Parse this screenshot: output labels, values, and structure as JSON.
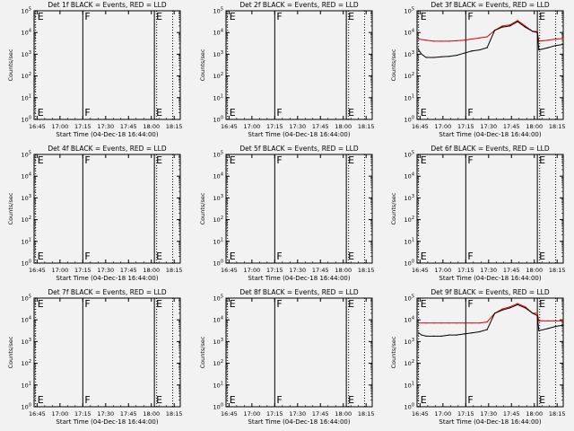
{
  "figure": {
    "background": "#f2f2f2",
    "axis_color": "#000000",
    "events_color": "#000000",
    "lld_color": "#e00000"
  },
  "chart_data": [
    {
      "id": "det1",
      "type": "line",
      "title": "Det 1f BLACK = Events, RED = LLD",
      "ylabel": "Counts/sec",
      "xlabel": "Start Time (04-Dec-18 16:44:00)",
      "xticks": [
        "16:45",
        "17:00",
        "17:15",
        "17:30",
        "17:45",
        "18:00",
        "18:15"
      ],
      "yticks": [
        "10^0",
        "10^1",
        "10^2",
        "10^3",
        "10^4",
        "10^5"
      ],
      "xlim_min": [
        -1,
        95
      ],
      "ylim_log10": [
        0,
        5
      ],
      "scale": "log",
      "markers": [
        {
          "label": "E",
          "t": 0,
          "style": "dotted"
        },
        {
          "label": "F",
          "t": 31,
          "style": "solid"
        },
        {
          "label": "E",
          "t": 78,
          "style": "solid"
        },
        {
          "label": "",
          "t": 79.5,
          "style": "dotted"
        },
        {
          "label": "",
          "t": 90,
          "style": "dotted"
        }
      ],
      "series": []
    },
    {
      "id": "det2",
      "type": "line",
      "title": "Det 2f BLACK = Events, RED = LLD",
      "ylabel": "Counts/sec",
      "xlabel": "Start Time (04-Dec-18 16:44:00)",
      "xticks": [
        "16:45",
        "17:00",
        "17:15",
        "17:30",
        "17:45",
        "18:00",
        "18:15"
      ],
      "yticks": [
        "10^0",
        "10^1",
        "10^2",
        "10^3",
        "10^4",
        "10^5"
      ],
      "xlim_min": [
        -1,
        95
      ],
      "ylim_log10": [
        0,
        5
      ],
      "scale": "log",
      "markers": [
        {
          "label": "E",
          "t": 0,
          "style": "dotted"
        },
        {
          "label": "F",
          "t": 31,
          "style": "solid"
        },
        {
          "label": "E",
          "t": 78,
          "style": "solid"
        },
        {
          "label": "",
          "t": 79.5,
          "style": "dotted"
        },
        {
          "label": "",
          "t": 90,
          "style": "dotted"
        }
      ],
      "series": []
    },
    {
      "id": "det3",
      "type": "line",
      "title": "Det 3f BLACK = Events, RED = LLD",
      "ylabel": "Counts/sec",
      "xlabel": "Start Time (04-Dec-18 16:44:00)",
      "xticks": [
        "16:45",
        "17:00",
        "17:15",
        "17:30",
        "17:45",
        "18:00",
        "18:15"
      ],
      "yticks": [
        "10^0",
        "10^1",
        "10^2",
        "10^3",
        "10^4",
        "10^5"
      ],
      "xlim_min": [
        -1,
        95
      ],
      "ylim_log10": [
        0,
        5
      ],
      "scale": "log",
      "markers": [
        {
          "label": "E",
          "t": 0,
          "style": "dotted"
        },
        {
          "label": "F",
          "t": 31,
          "style": "solid"
        },
        {
          "label": "E",
          "t": 78,
          "style": "solid"
        },
        {
          "label": "",
          "t": 79.5,
          "style": "dotted"
        },
        {
          "label": "",
          "t": 90,
          "style": "dotted"
        }
      ],
      "series": [
        {
          "color": "red",
          "x": [
            0,
            5,
            10,
            15,
            20,
            25,
            30,
            35,
            40,
            45,
            50,
            55,
            60,
            65,
            70,
            75,
            78,
            79,
            85,
            90,
            95
          ],
          "y": [
            3.7,
            3.65,
            3.6,
            3.6,
            3.6,
            3.62,
            3.65,
            3.7,
            3.75,
            3.8,
            4.1,
            4.3,
            4.35,
            4.55,
            4.3,
            4.05,
            4.05,
            3.6,
            3.65,
            3.7,
            3.72
          ]
        },
        {
          "color": "black",
          "x": [
            0,
            2,
            5,
            10,
            15,
            20,
            25,
            30,
            35,
            40,
            45,
            50,
            55,
            60,
            65,
            70,
            75,
            78,
            79,
            85,
            90,
            95
          ],
          "y": [
            3.2,
            3.0,
            2.85,
            2.85,
            2.88,
            2.9,
            2.95,
            3.05,
            3.15,
            3.2,
            3.3,
            4.1,
            4.25,
            4.3,
            4.5,
            4.25,
            4.05,
            4.0,
            3.2,
            3.3,
            3.4,
            3.45
          ]
        }
      ]
    },
    {
      "id": "det4",
      "type": "line",
      "title": "Det 4f BLACK = Events, RED = LLD",
      "ylabel": "Counts/sec",
      "xlabel": "Start Time (04-Dec-18 16:44:00)",
      "xticks": [
        "16:45",
        "17:00",
        "17:15",
        "17:30",
        "17:45",
        "18:00",
        "18:15"
      ],
      "yticks": [
        "10^0",
        "10^1",
        "10^2",
        "10^3",
        "10^4",
        "10^5"
      ],
      "xlim_min": [
        -1,
        95
      ],
      "ylim_log10": [
        0,
        5
      ],
      "scale": "log",
      "markers": [
        {
          "label": "E",
          "t": 0,
          "style": "dotted"
        },
        {
          "label": "F",
          "t": 31,
          "style": "solid"
        },
        {
          "label": "E",
          "t": 78,
          "style": "solid"
        },
        {
          "label": "",
          "t": 79.5,
          "style": "dotted"
        },
        {
          "label": "",
          "t": 90,
          "style": "dotted"
        }
      ],
      "series": []
    },
    {
      "id": "det5",
      "type": "line",
      "title": "Det 5f BLACK = Events, RED = LLD",
      "ylabel": "Counts/sec",
      "xlabel": "Start Time (04-Dec-18 16:44:00)",
      "xticks": [
        "16:45",
        "17:00",
        "17:15",
        "17:30",
        "17:45",
        "18:00",
        "18:15"
      ],
      "yticks": [
        "10^0",
        "10^1",
        "10^2",
        "10^3",
        "10^4",
        "10^5"
      ],
      "xlim_min": [
        -1,
        95
      ],
      "ylim_log10": [
        0,
        5
      ],
      "scale": "log",
      "markers": [
        {
          "label": "E",
          "t": 0,
          "style": "dotted"
        },
        {
          "label": "F",
          "t": 31,
          "style": "solid"
        },
        {
          "label": "E",
          "t": 78,
          "style": "solid"
        },
        {
          "label": "",
          "t": 79.5,
          "style": "dotted"
        },
        {
          "label": "",
          "t": 90,
          "style": "dotted"
        }
      ],
      "series": []
    },
    {
      "id": "det6",
      "type": "line",
      "title": "Det 6f BLACK = Events, RED = LLD",
      "ylabel": "Counts/sec",
      "xlabel": "Start Time (04-Dec-18 16:44:00)",
      "xticks": [
        "16:45",
        "17:00",
        "17:15",
        "17:30",
        "17:45",
        "18:00",
        "18:15"
      ],
      "yticks": [
        "10^0",
        "10^1",
        "10^2",
        "10^3",
        "10^4",
        "10^5"
      ],
      "xlim_min": [
        -1,
        95
      ],
      "ylim_log10": [
        0,
        5
      ],
      "scale": "log",
      "markers": [
        {
          "label": "E",
          "t": 0,
          "style": "dotted"
        },
        {
          "label": "F",
          "t": 31,
          "style": "solid"
        },
        {
          "label": "E",
          "t": 78,
          "style": "solid"
        },
        {
          "label": "",
          "t": 79.5,
          "style": "dotted"
        },
        {
          "label": "",
          "t": 90,
          "style": "dotted"
        }
      ],
      "series": []
    },
    {
      "id": "det7",
      "type": "line",
      "title": "Det 7f BLACK = Events, RED = LLD",
      "ylabel": "Counts/sec",
      "xlabel": "Start Time (04-Dec-18 16:44:00)",
      "xticks": [
        "16:45",
        "17:00",
        "17:15",
        "17:30",
        "17:45",
        "18:00",
        "18:15"
      ],
      "yticks": [
        "10^0",
        "10^1",
        "10^2",
        "10^3",
        "10^4",
        "10^5"
      ],
      "xlim_min": [
        -1,
        95
      ],
      "ylim_log10": [
        0,
        5
      ],
      "scale": "log",
      "markers": [
        {
          "label": "E",
          "t": 0,
          "style": "dotted"
        },
        {
          "label": "F",
          "t": 31,
          "style": "solid"
        },
        {
          "label": "E",
          "t": 78,
          "style": "solid"
        },
        {
          "label": "",
          "t": 79.5,
          "style": "dotted"
        },
        {
          "label": "",
          "t": 90,
          "style": "dotted"
        }
      ],
      "series": []
    },
    {
      "id": "det8",
      "type": "line",
      "title": "Det 8f BLACK = Events, RED = LLD",
      "ylabel": "Counts/sec",
      "xlabel": "Start Time (04-Dec-18 16:44:00)",
      "xticks": [
        "16:45",
        "17:00",
        "17:15",
        "17:30",
        "17:45",
        "18:00",
        "18:15"
      ],
      "yticks": [
        "10^0",
        "10^1",
        "10^2",
        "10^3",
        "10^4",
        "10^5"
      ],
      "xlim_min": [
        -1,
        95
      ],
      "ylim_log10": [
        0,
        5
      ],
      "scale": "log",
      "markers": [
        {
          "label": "E",
          "t": 0,
          "style": "dotted"
        },
        {
          "label": "F",
          "t": 31,
          "style": "solid"
        },
        {
          "label": "E",
          "t": 78,
          "style": "solid"
        },
        {
          "label": "",
          "t": 79.5,
          "style": "dotted"
        },
        {
          "label": "",
          "t": 90,
          "style": "dotted"
        }
      ],
      "series": []
    },
    {
      "id": "det9",
      "type": "line",
      "title": "Det 9f BLACK = Events, RED = LLD",
      "ylabel": "Counts/sec",
      "xlabel": "Start Time (04-Dec-18 16:44:00)",
      "xticks": [
        "16:45",
        "17:00",
        "17:15",
        "17:30",
        "17:45",
        "18:00",
        "18:15"
      ],
      "yticks": [
        "10^0",
        "10^1",
        "10^2",
        "10^3",
        "10^4",
        "10^5"
      ],
      "xlim_min": [
        -1,
        95
      ],
      "ylim_log10": [
        0,
        5
      ],
      "scale": "log",
      "markers": [
        {
          "label": "E",
          "t": 0,
          "style": "dotted"
        },
        {
          "label": "F",
          "t": 31,
          "style": "solid"
        },
        {
          "label": "E",
          "t": 78,
          "style": "solid"
        },
        {
          "label": "",
          "t": 79.5,
          "style": "dotted"
        },
        {
          "label": "",
          "t": 90,
          "style": "dotted"
        }
      ],
      "series": [
        {
          "color": "red",
          "x": [
            0,
            5,
            10,
            15,
            20,
            25,
            30,
            35,
            40,
            45,
            50,
            55,
            60,
            65,
            70,
            75,
            78,
            79,
            85,
            90,
            95
          ],
          "y": [
            3.85,
            3.85,
            3.85,
            3.85,
            3.85,
            3.85,
            3.85,
            3.85,
            3.85,
            3.9,
            4.3,
            4.5,
            4.6,
            4.75,
            4.6,
            4.3,
            4.3,
            3.95,
            3.95,
            3.95,
            3.95
          ]
        },
        {
          "color": "black",
          "x": [
            0,
            2,
            5,
            10,
            15,
            20,
            25,
            30,
            35,
            40,
            45,
            50,
            55,
            60,
            65,
            70,
            75,
            78,
            79,
            85,
            90,
            95
          ],
          "y": [
            3.4,
            3.3,
            3.25,
            3.25,
            3.25,
            3.3,
            3.3,
            3.35,
            3.4,
            3.45,
            3.55,
            4.3,
            4.45,
            4.55,
            4.7,
            4.55,
            4.3,
            4.2,
            3.5,
            3.6,
            3.7,
            3.75
          ]
        }
      ]
    }
  ]
}
